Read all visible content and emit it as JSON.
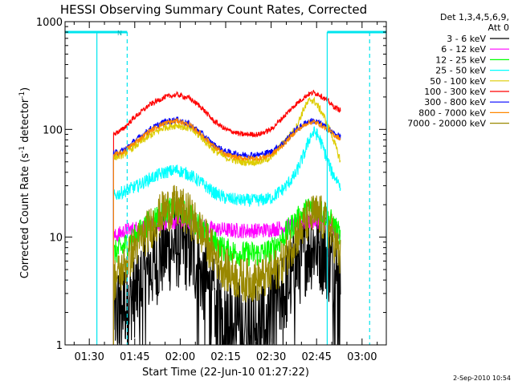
{
  "chart_data": {
    "type": "line",
    "title": "HESSI Observing Summary Count Rates, Corrected",
    "xlabel": "Start Time (22-Jun-10 01:27:22)",
    "ylabel": "Corrected Count Rate (s⁻¹ detector⁻¹)",
    "ylabel_parts": [
      "Corrected Count Rate (s",
      "-1",
      " detector",
      "-1",
      ")"
    ],
    "yscale": "log",
    "ylim": [
      1,
      1000
    ],
    "xlim_minutes": [
      82,
      188
    ],
    "x_ticks": [
      {
        "label": "01:30",
        "m": 90
      },
      {
        "label": "01:45",
        "m": 105
      },
      {
        "label": "02:00",
        "m": 120
      },
      {
        "label": "02:15",
        "m": 135
      },
      {
        "label": "02:30",
        "m": 150
      },
      {
        "label": "02:45",
        "m": 165
      },
      {
        "label": "03:00",
        "m": 180
      }
    ],
    "y_ticks": [
      {
        "label": "1",
        "v": 1
      },
      {
        "label": "10",
        "v": 10
      },
      {
        "label": "100",
        "v": 100
      },
      {
        "label": "1000",
        "v": 1000
      }
    ],
    "legend_header": [
      "Det 1,3,4,5,6,9,",
      "Att 0"
    ],
    "legend_placement": "top-right, outside plot",
    "timestamp": "2-Sep-2010 10:54",
    "flag_label": "N",
    "data_start_m": 92.5,
    "data_end_m": 182.5,
    "att_flag_level": 800,
    "flag_bars": [
      {
        "start_m": 82,
        "end_m": 102.5
      },
      {
        "start_m": 168.5,
        "end_m": 188
      }
    ],
    "flag_lines": [
      {
        "m": 92.5,
        "dashed": false
      },
      {
        "m": 102.5,
        "dashed": true
      },
      {
        "m": 168.5,
        "dashed": false
      },
      {
        "m": 182.5,
        "dashed": true
      }
    ],
    "series_time_range_m": [
      98,
      173
    ],
    "series": [
      {
        "name": "3 - 6 keV",
        "color": "#000000",
        "noise": 0.7,
        "dropouts": true,
        "points": [
          [
            98,
            2
          ],
          [
            100,
            2.2
          ],
          [
            105,
            3
          ],
          [
            110,
            5
          ],
          [
            115,
            7.5
          ],
          [
            119,
            8.5
          ],
          [
            122,
            8
          ],
          [
            125,
            6
          ],
          [
            128,
            4
          ],
          [
            131,
            2.5
          ],
          [
            135,
            1.8
          ],
          [
            140,
            1.5
          ],
          [
            145,
            1.6
          ],
          [
            150,
            2
          ],
          [
            154,
            3
          ],
          [
            158,
            5
          ],
          [
            162,
            8
          ],
          [
            165,
            8.5
          ],
          [
            168,
            7
          ],
          [
            171,
            4.5
          ],
          [
            173,
            3
          ]
        ]
      },
      {
        "name": "6 - 12 keV",
        "color": "#ff00ff",
        "noise": 0.12,
        "points": [
          [
            98,
            10
          ],
          [
            102,
            11.5
          ],
          [
            108,
            12.5
          ],
          [
            115,
            13.5
          ],
          [
            119,
            14
          ],
          [
            124,
            13.5
          ],
          [
            130,
            12
          ],
          [
            138,
            11.5
          ],
          [
            146,
            11.5
          ],
          [
            152,
            12
          ],
          [
            158,
            13
          ],
          [
            163,
            14
          ],
          [
            166,
            14
          ],
          [
            170,
            12.5
          ],
          [
            173,
            11
          ]
        ]
      },
      {
        "name": "12 - 25 keV",
        "color": "#00ff00",
        "noise": 0.2,
        "points": [
          [
            98,
            7
          ],
          [
            101,
            8
          ],
          [
            105,
            10
          ],
          [
            110,
            14
          ],
          [
            115,
            17.5
          ],
          [
            119,
            18
          ],
          [
            123,
            16
          ],
          [
            127,
            12
          ],
          [
            131,
            9
          ],
          [
            135,
            7.5
          ],
          [
            140,
            7
          ],
          [
            146,
            7
          ],
          [
            150,
            7.5
          ],
          [
            154,
            10
          ],
          [
            158,
            14
          ],
          [
            162,
            18
          ],
          [
            164,
            19
          ],
          [
            166,
            18
          ],
          [
            169,
            15
          ],
          [
            173,
            10
          ]
        ]
      },
      {
        "name": "25 - 50 keV",
        "color": "#00ffff",
        "noise": 0.1,
        "points": [
          [
            98,
            24
          ],
          [
            102,
            27
          ],
          [
            106,
            30
          ],
          [
            110,
            35
          ],
          [
            115,
            40
          ],
          [
            119,
            42
          ],
          [
            123,
            38
          ],
          [
            127,
            32
          ],
          [
            131,
            26
          ],
          [
            135,
            23
          ],
          [
            140,
            22
          ],
          [
            146,
            22
          ],
          [
            150,
            23
          ],
          [
            154,
            28
          ],
          [
            158,
            38
          ],
          [
            161,
            60
          ],
          [
            163,
            88
          ],
          [
            164.5,
            95
          ],
          [
            166,
            82
          ],
          [
            168,
            58
          ],
          [
            170,
            40
          ],
          [
            173,
            30
          ]
        ]
      },
      {
        "name": "50 - 100 keV",
        "color": "#ddcc00",
        "noise": 0.06,
        "points": [
          [
            98,
            55
          ],
          [
            101,
            58
          ],
          [
            105,
            70
          ],
          [
            110,
            88
          ],
          [
            115,
            105
          ],
          [
            119,
            110
          ],
          [
            123,
            102
          ],
          [
            127,
            85
          ],
          [
            131,
            65
          ],
          [
            135,
            55
          ],
          [
            140,
            50
          ],
          [
            146,
            50
          ],
          [
            150,
            55
          ],
          [
            154,
            75
          ],
          [
            158,
            100
          ],
          [
            161,
            160
          ],
          [
            163,
            190
          ],
          [
            164.5,
            180
          ],
          [
            167,
            140
          ],
          [
            170,
            90
          ],
          [
            172,
            60
          ],
          [
            173,
            50
          ]
        ]
      },
      {
        "name": "100 - 300 keV",
        "color": "#ff0000",
        "noise": 0.04,
        "points": [
          [
            98,
            90
          ],
          [
            101,
            100
          ],
          [
            105,
            130
          ],
          [
            110,
            170
          ],
          [
            115,
            200
          ],
          [
            119,
            210
          ],
          [
            123,
            195
          ],
          [
            127,
            160
          ],
          [
            131,
            120
          ],
          [
            135,
            100
          ],
          [
            140,
            90
          ],
          [
            146,
            90
          ],
          [
            150,
            100
          ],
          [
            154,
            130
          ],
          [
            158,
            170
          ],
          [
            162,
            210
          ],
          [
            164,
            220
          ],
          [
            166,
            210
          ],
          [
            169,
            180
          ],
          [
            171,
            160
          ],
          [
            173,
            150
          ]
        ]
      },
      {
        "name": "300 - 800 keV",
        "color": "#0000ff",
        "noise": 0.05,
        "points": [
          [
            98,
            60
          ],
          [
            101,
            63
          ],
          [
            105,
            78
          ],
          [
            110,
            100
          ],
          [
            115,
            118
          ],
          [
            119,
            123
          ],
          [
            123,
            112
          ],
          [
            127,
            92
          ],
          [
            131,
            72
          ],
          [
            135,
            62
          ],
          [
            140,
            58
          ],
          [
            146,
            58
          ],
          [
            150,
            62
          ],
          [
            154,
            75
          ],
          [
            158,
            98
          ],
          [
            162,
            118
          ],
          [
            164,
            120
          ],
          [
            166,
            115
          ],
          [
            169,
            100
          ],
          [
            171,
            90
          ],
          [
            173,
            85
          ]
        ]
      },
      {
        "name": "800 - 7000 keV",
        "color": "#ff8800",
        "noise": 0.04,
        "points": [
          [
            98,
            58
          ],
          [
            101,
            61
          ],
          [
            105,
            75
          ],
          [
            110,
            97
          ],
          [
            115,
            115
          ],
          [
            119,
            120
          ],
          [
            123,
            110
          ],
          [
            127,
            90
          ],
          [
            131,
            70
          ],
          [
            135,
            58
          ],
          [
            140,
            54
          ],
          [
            146,
            54
          ],
          [
            150,
            58
          ],
          [
            154,
            72
          ],
          [
            158,
            95
          ],
          [
            162,
            115
          ],
          [
            164,
            117
          ],
          [
            166,
            112
          ],
          [
            169,
            98
          ],
          [
            171,
            88
          ],
          [
            173,
            82
          ]
        ]
      },
      {
        "name": "7000 - 20000 keV",
        "color": "#998800",
        "noise": 0.35,
        "points": [
          [
            98,
            4
          ],
          [
            101,
            5
          ],
          [
            105,
            8
          ],
          [
            110,
            12
          ],
          [
            115,
            18
          ],
          [
            119,
            19
          ],
          [
            123,
            16
          ],
          [
            127,
            11
          ],
          [
            131,
            7
          ],
          [
            135,
            5
          ],
          [
            140,
            4
          ],
          [
            146,
            4
          ],
          [
            150,
            4.5
          ],
          [
            154,
            6
          ],
          [
            158,
            10
          ],
          [
            162,
            14
          ],
          [
            164,
            16
          ],
          [
            166,
            16
          ],
          [
            169,
            12
          ],
          [
            171,
            9
          ],
          [
            173,
            6
          ]
        ]
      }
    ]
  }
}
